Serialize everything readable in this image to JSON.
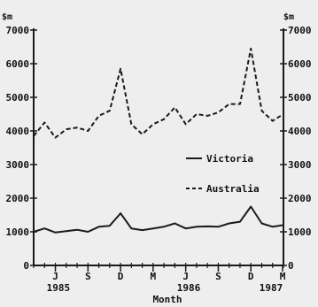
{
  "chart_data": {
    "type": "line",
    "title": "",
    "ylabel_left": "$m",
    "ylabel_right": "$m",
    "xlabel": "Month",
    "ylim": [
      0,
      7000
    ],
    "yticks": [
      "0",
      "1000",
      "2000",
      "3000",
      "4000",
      "5000",
      "6000",
      "7000"
    ],
    "month_ticks": [
      "J",
      "S",
      "D",
      "M",
      "J",
      "S",
      "D",
      "M"
    ],
    "year_labels": [
      "1985",
      "1986",
      "1987"
    ],
    "grid": false,
    "legend_position": "center-right",
    "series": [
      {
        "name": "Victoria",
        "style": "solid",
        "color": "#1a1a1a",
        "values": [
          1000,
          1100,
          980,
          1020,
          1060,
          1000,
          1150,
          1180,
          1550,
          1100,
          1050,
          1100,
          1150,
          1250,
          1100,
          1150,
          1160,
          1150,
          1250,
          1300,
          1750,
          1250,
          1150,
          1200
        ]
      },
      {
        "name": "Australia",
        "style": "dashed",
        "color": "#1a1a1a",
        "values": [
          3850,
          4250,
          3800,
          4050,
          4100,
          4000,
          4450,
          4600,
          5850,
          4200,
          3900,
          4200,
          4350,
          4700,
          4200,
          4500,
          4450,
          4550,
          4800,
          4800,
          6450,
          4600,
          4300,
          4500
        ]
      }
    ]
  }
}
